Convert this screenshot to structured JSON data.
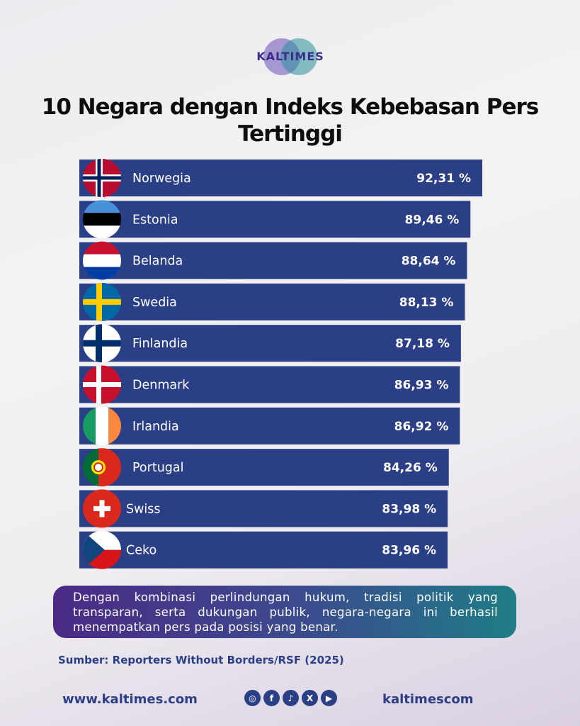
{
  "brand": {
    "name": "KALTIMES"
  },
  "title": {
    "line1": "10 Negara dengan Indeks Kebebasan Pers",
    "line2": "Tertinggi"
  },
  "chart_data": {
    "type": "bar",
    "orientation": "horizontal",
    "categories": [
      "Norwegia",
      "Estonia",
      "Belanda",
      "Swedia",
      "Finlandia",
      "Denmark",
      "Irlandia",
      "Portugal",
      "Swiss",
      "Ceko"
    ],
    "values": [
      92.31,
      89.46,
      88.64,
      88.13,
      87.18,
      86.93,
      86.92,
      84.26,
      83.98,
      83.96
    ],
    "value_labels": [
      "92,31 %",
      "89,46 %",
      "88,64 %",
      "88,13 %",
      "87,18 %",
      "86,93 %",
      "86,92 %",
      "84,26 %",
      "83,98 %",
      "83,96 %"
    ],
    "flag_icons": [
      "norway-flag-icon",
      "estonia-flag-icon",
      "netherlands-flag-icon",
      "sweden-flag-icon",
      "finland-flag-icon",
      "denmark-flag-icon",
      "ireland-flag-icon",
      "portugal-flag-icon",
      "switzerland-flag-icon",
      "czechia-flag-icon"
    ],
    "bar_color": "#2b3f86",
    "xlabel": "",
    "ylabel": ""
  },
  "note": "Dengan kombinasi perlindungan hukum, tradisi politik yang transparan, serta dukungan publik, negara-negara ini berhasil menempatkan pers pada posisi yang benar.",
  "source": "Sumber: Reporters Without Borders/RSF (2025)",
  "footer": {
    "website": "www.kaltimes.com",
    "handle": "kaltimescom",
    "social_icons": [
      "instagram-icon",
      "facebook-icon",
      "tiktok-icon",
      "x-icon",
      "youtube-icon"
    ]
  }
}
